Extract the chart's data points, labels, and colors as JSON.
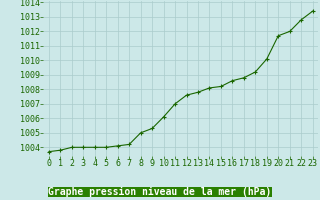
{
  "x": [
    0,
    1,
    2,
    3,
    4,
    5,
    6,
    7,
    8,
    9,
    10,
    11,
    12,
    13,
    14,
    15,
    16,
    17,
    18,
    19,
    20,
    21,
    22,
    23
  ],
  "y": [
    1003.7,
    1003.8,
    1004.0,
    1004.0,
    1004.0,
    1004.0,
    1004.1,
    1004.2,
    1005.0,
    1005.3,
    1006.1,
    1007.0,
    1007.6,
    1007.8,
    1008.1,
    1008.2,
    1008.6,
    1008.8,
    1009.2,
    1010.1,
    1011.7,
    1012.0,
    1012.8,
    1013.4
  ],
  "line_color": "#1a6600",
  "marker_color": "#1a6600",
  "bg_color": "#cce8e8",
  "grid_color": "#aacccc",
  "xlabel": "Graphe pression niveau de la mer (hPa)",
  "xlabel_color": "#1a6600",
  "xlabel_fontsize": 7,
  "ylabel_ticks": [
    1004,
    1005,
    1006,
    1007,
    1008,
    1009,
    1010,
    1011,
    1012,
    1013,
    1014
  ],
  "xlim": [
    -0.5,
    23.5
  ],
  "ylim": [
    1003.4,
    1014.1
  ],
  "tick_fontsize": 6,
  "tick_color": "#1a6600",
  "bottom_bar_color": "#2a8000",
  "bottom_bar_height": 0.12
}
